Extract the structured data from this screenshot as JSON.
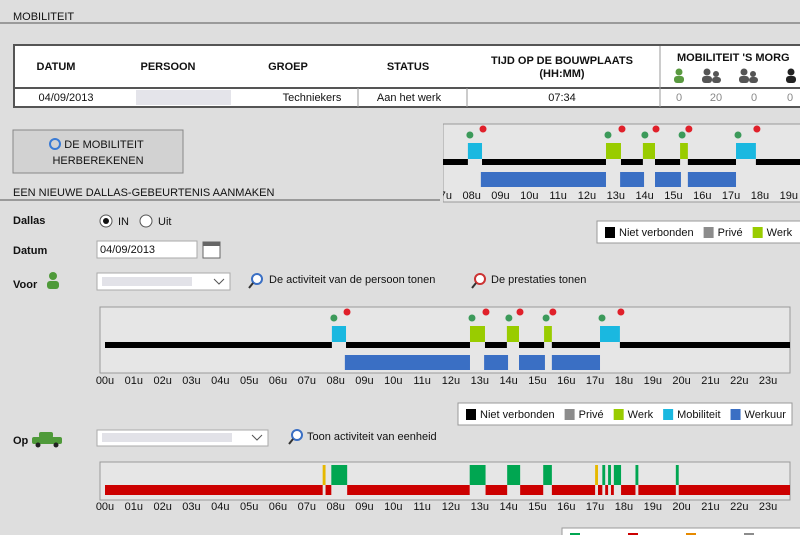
{
  "section_title": "MOBILITEIT",
  "table": {
    "headers": [
      "DATUM",
      "PERSOON",
      "GROEP",
      "STATUS"
    ],
    "time_header": [
      "TIJD OP DE BOUWPLAATS",
      "(HH:MM)"
    ],
    "mobility_header": "MOBILITEIT 'S MORG",
    "row": {
      "datum": "04/09/2013",
      "groep": "Techniekers",
      "status": "Aan het werk",
      "tijd": "07:34",
      "counts": [
        0,
        20,
        0,
        0
      ]
    }
  },
  "recalc_button": [
    "DE MOBILITEIT",
    "HERBEREKENEN"
  ],
  "form": {
    "title": "EEN NIEUWE DALLAS-GEBEURTENIS AANMAKEN",
    "dallas": "Dallas",
    "in": "IN",
    "uit": "Uit",
    "datum": "Datum",
    "date_value": "04/09/2013",
    "voor": "Voor",
    "show_person": "De activiteit van de persoon tonen",
    "show_prestaties": "De prestaties tonen",
    "op": "Op",
    "show_unit": "Toon activiteit van eenheid"
  },
  "timeline": {
    "hour_labels": [
      "00u",
      "01u",
      "02u",
      "03u",
      "04u",
      "05u",
      "06u",
      "07u",
      "08u",
      "09u",
      "10u",
      "11u",
      "12u",
      "13u",
      "14u",
      "15u",
      "16u",
      "17u",
      "18u",
      "19u",
      "20u",
      "21u",
      "22u",
      "23u"
    ],
    "layers": [
      {
        "name": "Niet verbonden",
        "color": "#000000"
      },
      {
        "name": "Privé",
        "color": "#8c8c8c"
      },
      {
        "name": "Werk",
        "color": "#99cc00",
        "periods": [
          [
            12.66,
            13.18
          ],
          [
            13.94,
            14.36
          ],
          [
            15.23,
            15.5
          ]
        ]
      },
      {
        "name": "Mobiliteit",
        "color": "#1ab8e0",
        "periods": [
          [
            7.87,
            8.36
          ],
          [
            17.17,
            17.86
          ]
        ]
      },
      {
        "name": "Werkuur",
        "color": "#3a6fc4",
        "periods": [
          [
            8.32,
            12.66
          ],
          [
            13.15,
            13.98
          ],
          [
            14.36,
            15.26
          ],
          [
            15.5,
            17.17
          ]
        ]
      }
    ],
    "start_color": "#3c9a5a",
    "end_color": "#e0202a"
  },
  "vehicle": {
    "line_color": "#cc0000",
    "green_color": "#00a651",
    "amber_color": "#e6b800",
    "green_periods": [
      [
        7.85,
        8.4
      ],
      [
        12.65,
        13.2
      ],
      [
        13.95,
        14.4
      ],
      [
        15.2,
        15.5
      ],
      [
        17.25,
        17.35
      ],
      [
        17.45,
        17.55
      ],
      [
        17.65,
        17.9
      ],
      [
        18.4,
        18.5
      ],
      [
        19.8,
        19.9
      ]
    ],
    "amber_periods": [
      [
        7.55,
        7.65
      ],
      [
        17.0,
        17.1
      ]
    ],
    "legend_colors": [
      "#00a651",
      "#cc0000",
      "#e68a00",
      "#8c8c8c"
    ]
  }
}
